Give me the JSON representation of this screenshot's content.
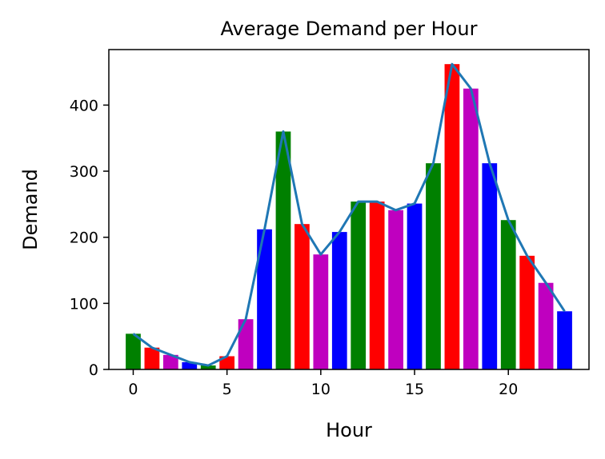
{
  "chart_data": {
    "type": "bar",
    "title": "Average Demand per Hour",
    "xlabel": "Hour",
    "ylabel": "Demand",
    "xlim": [
      -1.3,
      24.3
    ],
    "ylim": [
      0,
      484
    ],
    "x_ticks": [
      0,
      5,
      10,
      15,
      20
    ],
    "y_ticks": [
      0,
      100,
      200,
      300,
      400
    ],
    "grid": false,
    "bar_colors": [
      "#008000",
      "#ff0000",
      "#bf00bf",
      "#0000ff"
    ],
    "line_color": "#1f77b4",
    "x": [
      0,
      1,
      2,
      3,
      4,
      5,
      6,
      7,
      8,
      9,
      10,
      11,
      12,
      13,
      14,
      15,
      16,
      17,
      18,
      19,
      20,
      21,
      22,
      23
    ],
    "values": [
      54,
      33,
      22,
      11,
      6,
      20,
      76,
      212,
      360,
      220,
      174,
      208,
      254,
      254,
      241,
      251,
      312,
      462,
      425,
      312,
      226,
      172,
      131,
      88
    ]
  }
}
